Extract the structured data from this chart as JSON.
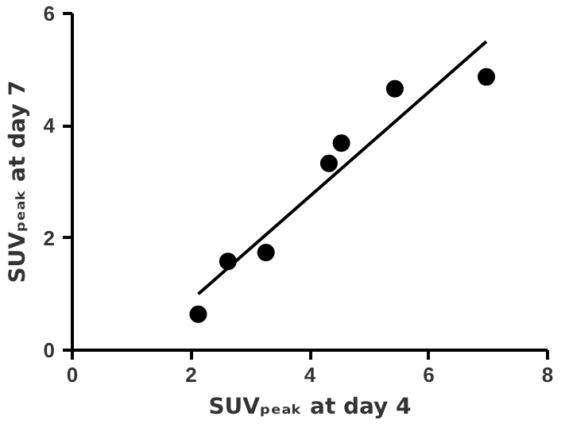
{
  "chart_data": {
    "type": "scatter",
    "xlabel": "SUVₚₑₐₖ at day 4",
    "ylabel": "SUVₚₑₐₖ at day 7",
    "xlim": [
      0,
      8
    ],
    "ylim": [
      0,
      6
    ],
    "xticks": [
      0,
      2,
      4,
      6,
      8
    ],
    "yticks": [
      0,
      2,
      4,
      6
    ],
    "grid": false,
    "marker": "circle",
    "series": [
      {
        "color": "#000000",
        "x": [
          2.12,
          2.62,
          3.26,
          4.32,
          4.53,
          5.43,
          6.97
        ],
        "values": [
          0.64,
          1.58,
          1.74,
          3.33,
          3.69,
          4.66,
          4.87
        ]
      },
      {
        "type": "line",
        "color": "#000000",
        "line_style": "solid",
        "marker": "none",
        "x": [
          2.12,
          6.97
        ],
        "values": [
          1.0,
          5.5
        ]
      }
    ]
  }
}
